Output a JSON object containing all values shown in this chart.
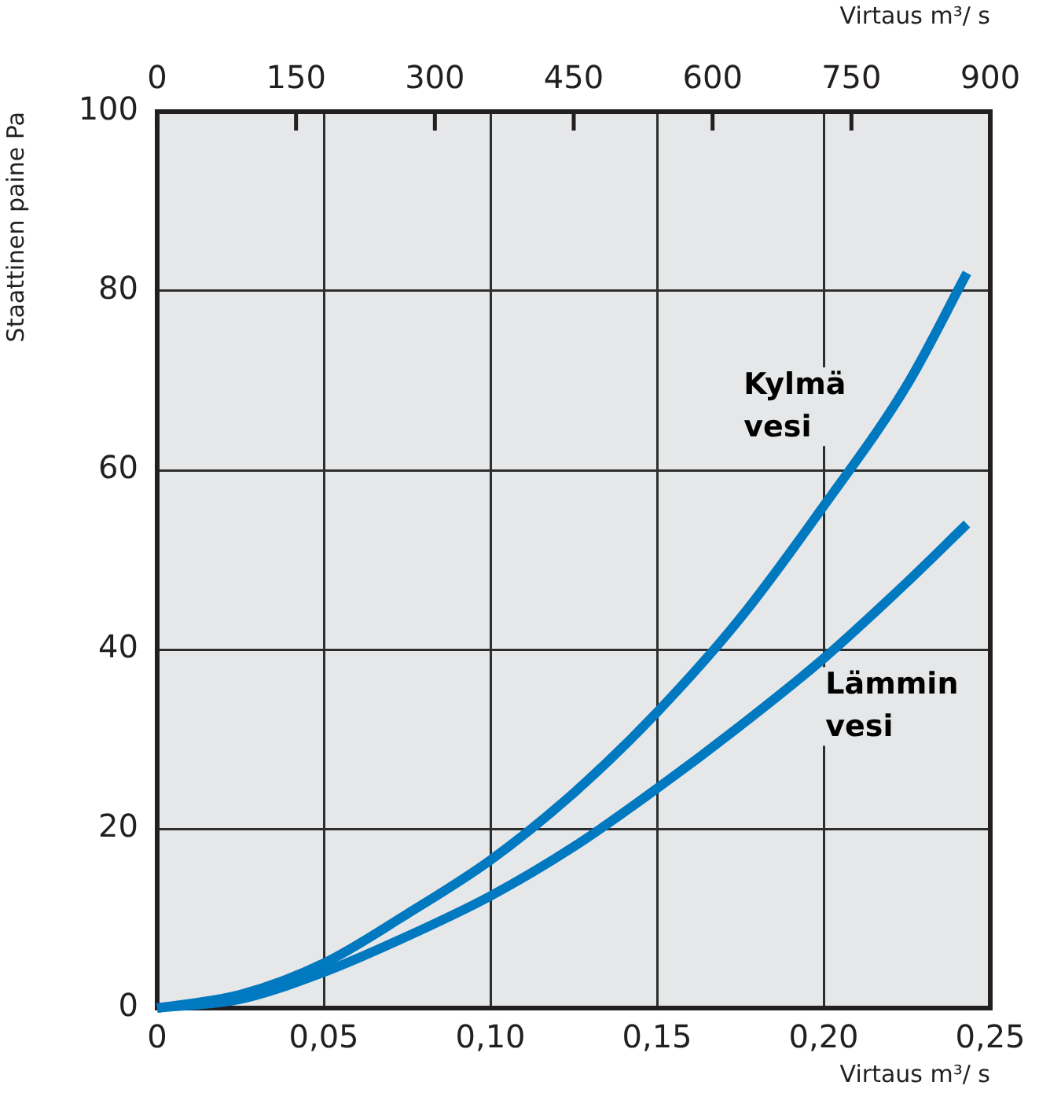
{
  "chart_data": {
    "type": "line",
    "xlabel": "Virtaus m³/ s",
    "ylabel": "Staattinen paine Pa",
    "x2label": "Virtaus m³/ s",
    "x": [
      0,
      0.025,
      0.05,
      0.075,
      0.1,
      0.125,
      0.15,
      0.175,
      0.2,
      0.225,
      0.243
    ],
    "series": [
      {
        "name": "Kylmä vesi",
        "color": "#0079c1",
        "values": [
          0,
          1.5,
          5,
          10.5,
          16.5,
          24,
          33,
          43.5,
          56,
          69.5,
          82
        ]
      },
      {
        "name": "Lämmin vesi",
        "color": "#0079c1",
        "values": [
          0,
          1,
          4,
          8,
          12.5,
          18,
          24.5,
          31.5,
          39,
          47.5,
          54
        ]
      }
    ],
    "xlim": [
      0,
      0.25
    ],
    "xticks": [
      0,
      {
        "value": 0.05,
        "label": "0,05"
      },
      {
        "value": 0.1,
        "label": "0,10"
      },
      {
        "value": 0.15,
        "label": "0,15"
      },
      {
        "value": 0.2,
        "label": "0,20"
      },
      {
        "value": 0.25,
        "label": "0,25"
      }
    ],
    "ylim": [
      0,
      100
    ],
    "yticks": [
      0,
      20,
      40,
      60,
      80,
      100
    ],
    "x2lim": [
      0,
      900
    ],
    "x2ticks": [
      0,
      150,
      300,
      450,
      600,
      750,
      900
    ],
    "grid": true,
    "marker": "none",
    "line_style": "solid"
  }
}
